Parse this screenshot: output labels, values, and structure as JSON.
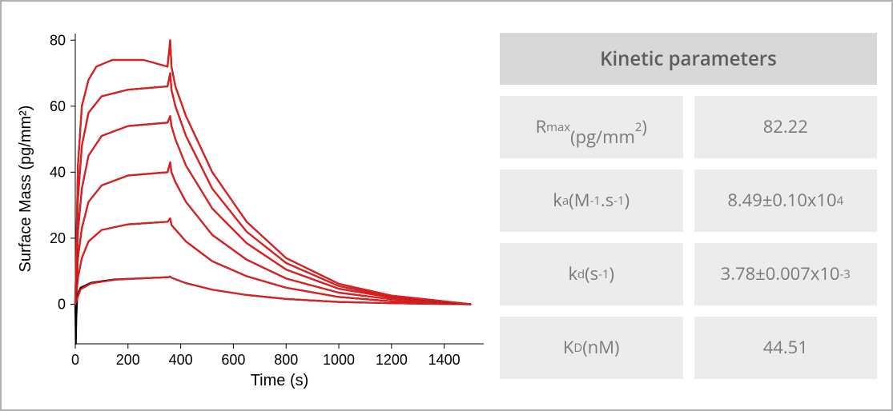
{
  "chart": {
    "type": "line",
    "xlabel": "Time (s)",
    "ylabel": "Surface Mass (pg/mm²)",
    "xlim": [
      0,
      1550
    ],
    "ylim": [
      -12,
      82
    ],
    "xticks": [
      0,
      200,
      400,
      600,
      800,
      1000,
      1200,
      1400
    ],
    "yticks": [
      0,
      20,
      40,
      60,
      80
    ],
    "background_color": "#ffffff",
    "axis_color": "#000000",
    "tick_fontsize": 18,
    "label_fontsize": 20,
    "line_width": 2.2,
    "series_colors": {
      "data": "#000000",
      "fit": "#e02020"
    },
    "curves": [
      {
        "color": "data",
        "pts": [
          [
            0,
            0
          ],
          [
            2,
            -12
          ],
          [
            4,
            -4
          ],
          [
            8,
            3
          ],
          [
            20,
            5
          ],
          [
            60,
            6.5
          ],
          [
            150,
            7.5
          ],
          [
            300,
            8
          ],
          [
            355,
            8.2
          ],
          [
            360,
            8.4
          ],
          [
            365,
            8
          ],
          [
            420,
            6.4
          ],
          [
            520,
            4.4
          ],
          [
            650,
            2.8
          ],
          [
            800,
            1.6
          ],
          [
            1000,
            0.7
          ],
          [
            1200,
            0.3
          ],
          [
            1400,
            0.1
          ],
          [
            1500,
            0
          ]
        ]
      },
      {
        "color": "fit",
        "pts": [
          [
            0,
            0
          ],
          [
            20,
            4.5
          ],
          [
            60,
            6.3
          ],
          [
            150,
            7.4
          ],
          [
            300,
            8
          ],
          [
            355,
            8.2
          ],
          [
            360,
            8.4
          ],
          [
            365,
            8
          ],
          [
            420,
            6.4
          ],
          [
            520,
            4.4
          ],
          [
            650,
            2.8
          ],
          [
            800,
            1.6
          ],
          [
            1000,
            0.7
          ],
          [
            1200,
            0.3
          ],
          [
            1400,
            0.1
          ],
          [
            1500,
            0
          ]
        ]
      },
      {
        "color": "data",
        "pts": [
          [
            0,
            0
          ],
          [
            10,
            8
          ],
          [
            25,
            14
          ],
          [
            50,
            19
          ],
          [
            100,
            22.5
          ],
          [
            200,
            24.2
          ],
          [
            350,
            25
          ],
          [
            360,
            26
          ],
          [
            365,
            24
          ],
          [
            420,
            19
          ],
          [
            520,
            13
          ],
          [
            650,
            8.5
          ],
          [
            800,
            5
          ],
          [
            1000,
            2.2
          ],
          [
            1200,
            0.9
          ],
          [
            1400,
            0.3
          ],
          [
            1500,
            0
          ]
        ]
      },
      {
        "color": "fit",
        "pts": [
          [
            0,
            0
          ],
          [
            10,
            8
          ],
          [
            25,
            14
          ],
          [
            50,
            19
          ],
          [
            100,
            22.5
          ],
          [
            200,
            24.2
          ],
          [
            350,
            25
          ],
          [
            360,
            26
          ],
          [
            365,
            24
          ],
          [
            420,
            19
          ],
          [
            520,
            13
          ],
          [
            650,
            8.5
          ],
          [
            800,
            5
          ],
          [
            1000,
            2.2
          ],
          [
            1200,
            0.9
          ],
          [
            1400,
            0.3
          ],
          [
            1500,
            0
          ]
        ]
      },
      {
        "color": "data",
        "pts": [
          [
            0,
            0
          ],
          [
            10,
            14
          ],
          [
            25,
            23
          ],
          [
            50,
            31
          ],
          [
            100,
            36
          ],
          [
            200,
            39
          ],
          [
            350,
            40
          ],
          [
            360,
            43
          ],
          [
            365,
            40
          ],
          [
            380,
            37
          ],
          [
            420,
            31
          ],
          [
            520,
            21
          ],
          [
            650,
            13.5
          ],
          [
            800,
            7.8
          ],
          [
            1000,
            3.5
          ],
          [
            1200,
            1.5
          ],
          [
            1400,
            0.5
          ],
          [
            1500,
            0
          ]
        ]
      },
      {
        "color": "fit",
        "pts": [
          [
            0,
            0
          ],
          [
            10,
            14
          ],
          [
            25,
            23
          ],
          [
            50,
            31
          ],
          [
            100,
            36
          ],
          [
            200,
            39
          ],
          [
            350,
            40
          ],
          [
            360,
            43
          ],
          [
            365,
            40
          ],
          [
            380,
            37
          ],
          [
            420,
            31
          ],
          [
            520,
            21
          ],
          [
            650,
            13.5
          ],
          [
            800,
            7.8
          ],
          [
            1000,
            3.5
          ],
          [
            1200,
            1.5
          ],
          [
            1400,
            0.5
          ],
          [
            1500,
            0
          ]
        ]
      },
      {
        "color": "data",
        "pts": [
          [
            0,
            0
          ],
          [
            10,
            22
          ],
          [
            25,
            35
          ],
          [
            50,
            45
          ],
          [
            100,
            51
          ],
          [
            200,
            54
          ],
          [
            350,
            55
          ],
          [
            360,
            57
          ],
          [
            365,
            54
          ],
          [
            380,
            50
          ],
          [
            420,
            42
          ],
          [
            520,
            29
          ],
          [
            650,
            18.5
          ],
          [
            800,
            10.5
          ],
          [
            1000,
            4.7
          ],
          [
            1200,
            2
          ],
          [
            1400,
            0.7
          ],
          [
            1500,
            0
          ]
        ]
      },
      {
        "color": "fit",
        "pts": [
          [
            0,
            0
          ],
          [
            10,
            22
          ],
          [
            25,
            35
          ],
          [
            50,
            45
          ],
          [
            100,
            51
          ],
          [
            200,
            54
          ],
          [
            350,
            55
          ],
          [
            360,
            57
          ],
          [
            365,
            54
          ],
          [
            380,
            50
          ],
          [
            420,
            42
          ],
          [
            520,
            29
          ],
          [
            650,
            18.5
          ],
          [
            800,
            10.5
          ],
          [
            1000,
            4.7
          ],
          [
            1200,
            2
          ],
          [
            1400,
            0.7
          ],
          [
            1500,
            0
          ]
        ]
      },
      {
        "color": "data",
        "pts": [
          [
            0,
            0
          ],
          [
            10,
            32
          ],
          [
            25,
            48
          ],
          [
            50,
            58
          ],
          [
            100,
            63
          ],
          [
            200,
            65
          ],
          [
            350,
            66
          ],
          [
            360,
            70
          ],
          [
            365,
            65
          ],
          [
            380,
            60
          ],
          [
            420,
            51
          ],
          [
            520,
            35
          ],
          [
            650,
            22
          ],
          [
            800,
            12.5
          ],
          [
            1000,
            5.5
          ],
          [
            1200,
            2.3
          ],
          [
            1400,
            0.8
          ],
          [
            1500,
            0
          ]
        ]
      },
      {
        "color": "fit",
        "pts": [
          [
            0,
            0
          ],
          [
            10,
            32
          ],
          [
            25,
            48
          ],
          [
            50,
            58
          ],
          [
            100,
            63
          ],
          [
            200,
            65
          ],
          [
            350,
            66
          ],
          [
            360,
            70
          ],
          [
            365,
            65
          ],
          [
            380,
            60
          ],
          [
            420,
            51
          ],
          [
            520,
            35
          ],
          [
            650,
            22
          ],
          [
            800,
            12.5
          ],
          [
            1000,
            5.5
          ],
          [
            1200,
            2.3
          ],
          [
            1400,
            0.8
          ],
          [
            1500,
            0
          ]
        ]
      },
      {
        "color": "data",
        "pts": [
          [
            0,
            0
          ],
          [
            10,
            42
          ],
          [
            25,
            60
          ],
          [
            50,
            68
          ],
          [
            80,
            72
          ],
          [
            140,
            74
          ],
          [
            260,
            74
          ],
          [
            350,
            72
          ],
          [
            360,
            80
          ],
          [
            365,
            72
          ],
          [
            380,
            66
          ],
          [
            420,
            57
          ],
          [
            520,
            40
          ],
          [
            650,
            25
          ],
          [
            800,
            14
          ],
          [
            1000,
            6.2
          ],
          [
            1200,
            2.6
          ],
          [
            1400,
            0.9
          ],
          [
            1500,
            0
          ]
        ]
      },
      {
        "color": "fit",
        "pts": [
          [
            0,
            0
          ],
          [
            10,
            42
          ],
          [
            25,
            60
          ],
          [
            50,
            68
          ],
          [
            80,
            72
          ],
          [
            140,
            74
          ],
          [
            260,
            74
          ],
          [
            350,
            72
          ],
          [
            360,
            80
          ],
          [
            365,
            72
          ],
          [
            380,
            66
          ],
          [
            420,
            57
          ],
          [
            520,
            40
          ],
          [
            650,
            25
          ],
          [
            800,
            14
          ],
          [
            1000,
            6.2
          ],
          [
            1200,
            2.6
          ],
          [
            1400,
            0.9
          ],
          [
            1500,
            0
          ]
        ]
      }
    ]
  },
  "table": {
    "header": "Kinetic parameters",
    "header_bg": "#d8d8d8",
    "cell_bg": "#ececec",
    "text_color": "#7a7a7a",
    "fontsize_header": 24,
    "fontsize_cell": 22,
    "rows": [
      {
        "label_html": "R<sub>max</sub><br>(pg/mm<sup>2</sup>)",
        "value_html": "82.22"
      },
      {
        "label_html": "k<sub>a</sub> (M<sup>-1</sup>.s<sup>-1</sup>)",
        "value_html": "8.49±0.10x10<sup>4</sup>"
      },
      {
        "label_html": "k<sub>d</sub> (s<sup>-1</sup>)",
        "value_html": "3.78±0.007x10<sup>-3</sup>"
      },
      {
        "label_html": "K<sub>D</sub> (nM)",
        "value_html": "44.51"
      }
    ]
  }
}
